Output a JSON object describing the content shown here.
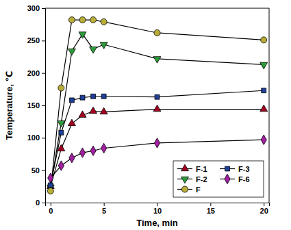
{
  "chart_data": {
    "type": "line",
    "x_label": "Time, min",
    "y_label": "Temperature, ℃",
    "x": [
      0,
      1,
      2,
      3,
      4,
      5,
      10,
      20
    ],
    "series": [
      {
        "name": "F-1",
        "color": "#a50021",
        "marker": "triangle-up",
        "values": [
          25,
          83,
          122,
          135,
          141,
          140,
          144,
          144
        ]
      },
      {
        "name": "F-2",
        "color": "#2e9c3a",
        "marker": "triangle-down",
        "values": [
          24,
          123,
          234,
          260,
          237,
          244,
          222,
          213
        ]
      },
      {
        "name": "F",
        "color": "#b8ad3a",
        "marker": "circle",
        "values": [
          18,
          177,
          282,
          282,
          282,
          279,
          262,
          251
        ]
      },
      {
        "name": "F-3",
        "color": "#1f3f99",
        "marker": "square",
        "values": [
          27,
          108,
          158,
          162,
          164,
          164,
          163,
          173
        ]
      },
      {
        "name": "F-6",
        "color": "#a020a0",
        "marker": "diamond",
        "values": [
          38,
          57,
          69,
          77,
          80,
          84,
          92,
          97
        ]
      }
    ],
    "xlim": [
      -0.5,
      20.5
    ],
    "xticks": [
      0,
      5,
      10,
      15,
      20
    ],
    "ylim": [
      0,
      300
    ],
    "yticks": [
      0,
      50,
      100,
      150,
      200,
      250,
      300
    ],
    "legend": "lower right",
    "grid": false
  }
}
